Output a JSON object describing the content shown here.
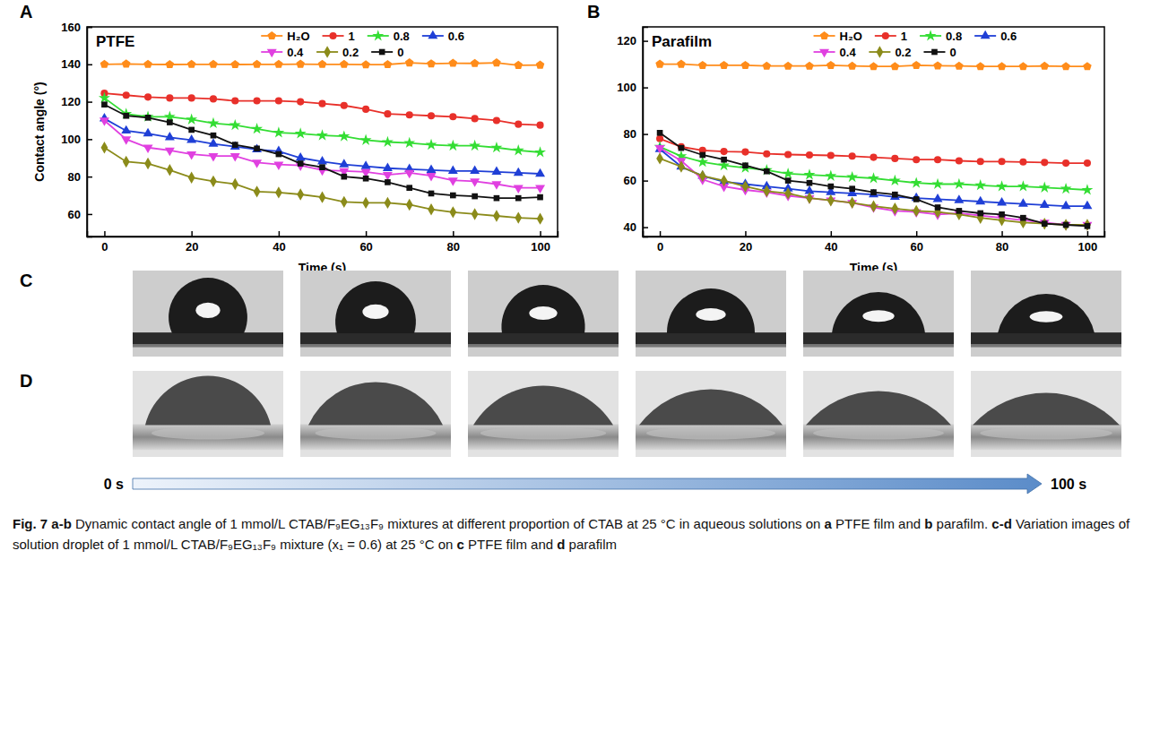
{
  "chart_data": [
    {
      "type": "line",
      "title": "PTFE",
      "x_label": "Time (s)",
      "y_label": "Contact angle (°)",
      "x": [
        0,
        5,
        10,
        15,
        20,
        25,
        30,
        35,
        40,
        45,
        50,
        55,
        60,
        65,
        70,
        75,
        80,
        85,
        90,
        95,
        100
      ],
      "xlim": [
        -4,
        104
      ],
      "xticks": [
        0,
        20,
        40,
        60,
        80,
        100
      ],
      "ylim": [
        48,
        160
      ],
      "yticks": [
        60,
        80,
        100,
        120,
        140,
        160
      ],
      "legend": "top",
      "series": [
        {
          "name": "H₂O",
          "color": "#ff8c1a",
          "marker": "pentagon",
          "values": [
            140,
            140.2,
            140,
            139.9,
            140,
            140,
            139.9,
            140,
            140,
            140.1,
            140,
            140,
            139.8,
            139.9,
            140.8,
            140.3,
            140.6,
            140.5,
            140.8,
            139.5,
            139.6
          ]
        },
        {
          "name": "1",
          "color": "#e8302a",
          "marker": "circle",
          "values": [
            124.5,
            123.5,
            122.5,
            122,
            122,
            121.5,
            120.5,
            120.5,
            120.5,
            120,
            119,
            118,
            116,
            113.5,
            113,
            112.5,
            112,
            111,
            110,
            108,
            107.5
          ]
        },
        {
          "name": "0.8",
          "color": "#33dd33",
          "marker": "star",
          "values": [
            122,
            113.5,
            112,
            112,
            110.5,
            108.5,
            107.5,
            105.5,
            103.5,
            103,
            102,
            101.5,
            99.5,
            98.5,
            98,
            97,
            96.5,
            96.5,
            95.5,
            94,
            93
          ]
        },
        {
          "name": "0.6",
          "color": "#1f3fd6",
          "marker": "triangle-up",
          "values": [
            111,
            104.5,
            103,
            101,
            99.5,
            97.5,
            96,
            94.5,
            93.5,
            90,
            88,
            86.5,
            85.5,
            84.5,
            84,
            83.5,
            83,
            83,
            82.5,
            82,
            81.5
          ]
        },
        {
          "name": "0.4",
          "color": "#e040e0",
          "marker": "triangle-down",
          "values": [
            110,
            100,
            95.5,
            94,
            92,
            91,
            91,
            87.5,
            86.5,
            86,
            83.5,
            83,
            82.5,
            81,
            82,
            80.5,
            78,
            77.5,
            76,
            74,
            74
          ]
        },
        {
          "name": "0.2",
          "color": "#8b8b1a",
          "marker": "diamond",
          "values": [
            95.5,
            88,
            87,
            83.5,
            79.5,
            77.5,
            76,
            72,
            71.5,
            70.5,
            69,
            66.5,
            66,
            66,
            65,
            62.5,
            61,
            60,
            59,
            58,
            57.5
          ]
        },
        {
          "name": "0",
          "color": "#111111",
          "marker": "square",
          "values": [
            118.5,
            112.5,
            111.5,
            109,
            105,
            102,
            97,
            95,
            92,
            87,
            85,
            80,
            79,
            77,
            74,
            71,
            70,
            69.5,
            68.5,
            68.5,
            69
          ]
        }
      ]
    },
    {
      "type": "line",
      "title": "Parafilm",
      "x_label": "Time (s)",
      "x": [
        0,
        5,
        10,
        15,
        20,
        25,
        30,
        35,
        40,
        45,
        50,
        55,
        60,
        65,
        70,
        75,
        80,
        85,
        90,
        95,
        100
      ],
      "xlim": [
        -4,
        104
      ],
      "xticks": [
        0,
        20,
        40,
        60,
        80,
        100
      ],
      "ylim": [
        36,
        126
      ],
      "yticks": [
        40,
        60,
        80,
        100,
        120
      ],
      "legend": "top",
      "series": [
        {
          "name": "H₂O",
          "color": "#ff8c1a",
          "marker": "pentagon",
          "values": [
            110,
            110,
            109.5,
            109.5,
            109.5,
            109.2,
            109.2,
            109.2,
            109.5,
            109.2,
            109,
            109,
            109.5,
            109.3,
            109.2,
            109,
            109,
            109,
            109.2,
            109,
            109
          ]
        },
        {
          "name": "1",
          "color": "#e8302a",
          "marker": "circle",
          "values": [
            78,
            74.5,
            73,
            72.5,
            72.3,
            71.5,
            71.2,
            71,
            70.8,
            70.5,
            70,
            69.5,
            69,
            69,
            68.5,
            68.2,
            68.2,
            68,
            67.8,
            67.5,
            67.5
          ]
        },
        {
          "name": "0.8",
          "color": "#33dd33",
          "marker": "star",
          "values": [
            74.5,
            70.5,
            68,
            66.5,
            65.5,
            64.5,
            63,
            62.5,
            62,
            61.5,
            61,
            60,
            59,
            58.5,
            58.5,
            58,
            57.5,
            57.5,
            57,
            56.5,
            56
          ]
        },
        {
          "name": "0.6",
          "color": "#1f3fd6",
          "marker": "triangle-up",
          "values": [
            73.5,
            66,
            62,
            59.5,
            58.5,
            57.5,
            56.5,
            55.5,
            55,
            54.5,
            54,
            53,
            52.5,
            52,
            51.5,
            51,
            50.5,
            50,
            49.5,
            49,
            49
          ]
        },
        {
          "name": "0.4",
          "color": "#e040e0",
          "marker": "triangle-down",
          "values": [
            74,
            68.5,
            60.5,
            57.5,
            56,
            55,
            53.5,
            52.5,
            51.5,
            50.5,
            48.5,
            47,
            46.5,
            45.5,
            46,
            45,
            44,
            43,
            42,
            41,
            41
          ]
        },
        {
          "name": "0.2",
          "color": "#8b8b1a",
          "marker": "diamond",
          "values": [
            69.5,
            66,
            62,
            60,
            57.5,
            55.5,
            54.5,
            52.5,
            51.5,
            50.5,
            49,
            48,
            47,
            46.5,
            45.5,
            44,
            43,
            42,
            41.5,
            41,
            41
          ]
        },
        {
          "name": "0",
          "color": "#111111",
          "marker": "square",
          "values": [
            80.5,
            74,
            71,
            69,
            66.5,
            64,
            60,
            59,
            57.5,
            56.5,
            55,
            54,
            52,
            48.5,
            47,
            46,
            45.5,
            44,
            41.5,
            41,
            40.5
          ]
        }
      ]
    }
  ],
  "figure": {
    "panel_labels": [
      "A",
      "B",
      "C",
      "D"
    ],
    "time_start": "0 s",
    "time_end": "100 s",
    "caption": [
      {
        "text": "Fig. 7",
        "bold": true
      },
      {
        "text": " ",
        "bold": false
      },
      {
        "text": "a-b",
        "bold": true
      },
      {
        "text": " Dynamic contact angle of 1 mmol/L CTAB/F₉EG₁₃F₉ mixtures at different proportion of CTAB at 25 °C in aqueous solutions on ",
        "bold": false
      },
      {
        "text": "a",
        "bold": true
      },
      {
        "text": " PTFE film and ",
        "bold": false
      },
      {
        "text": "b",
        "bold": true
      },
      {
        "text": " parafilm. ",
        "bold": false
      },
      {
        "text": "c-d",
        "bold": true
      },
      {
        "text": " Variation images of solution droplet of 1 mmol/L CTAB/F₉EG₁₃F₉ mixture (x₁ = 0.6) at 25 °C on ",
        "bold": false
      },
      {
        "text": "c",
        "bold": true
      },
      {
        "text": " PTFE film and ",
        "bold": false
      },
      {
        "text": "d",
        "bold": true
      },
      {
        "text": " parafilm",
        "bold": false
      }
    ]
  }
}
